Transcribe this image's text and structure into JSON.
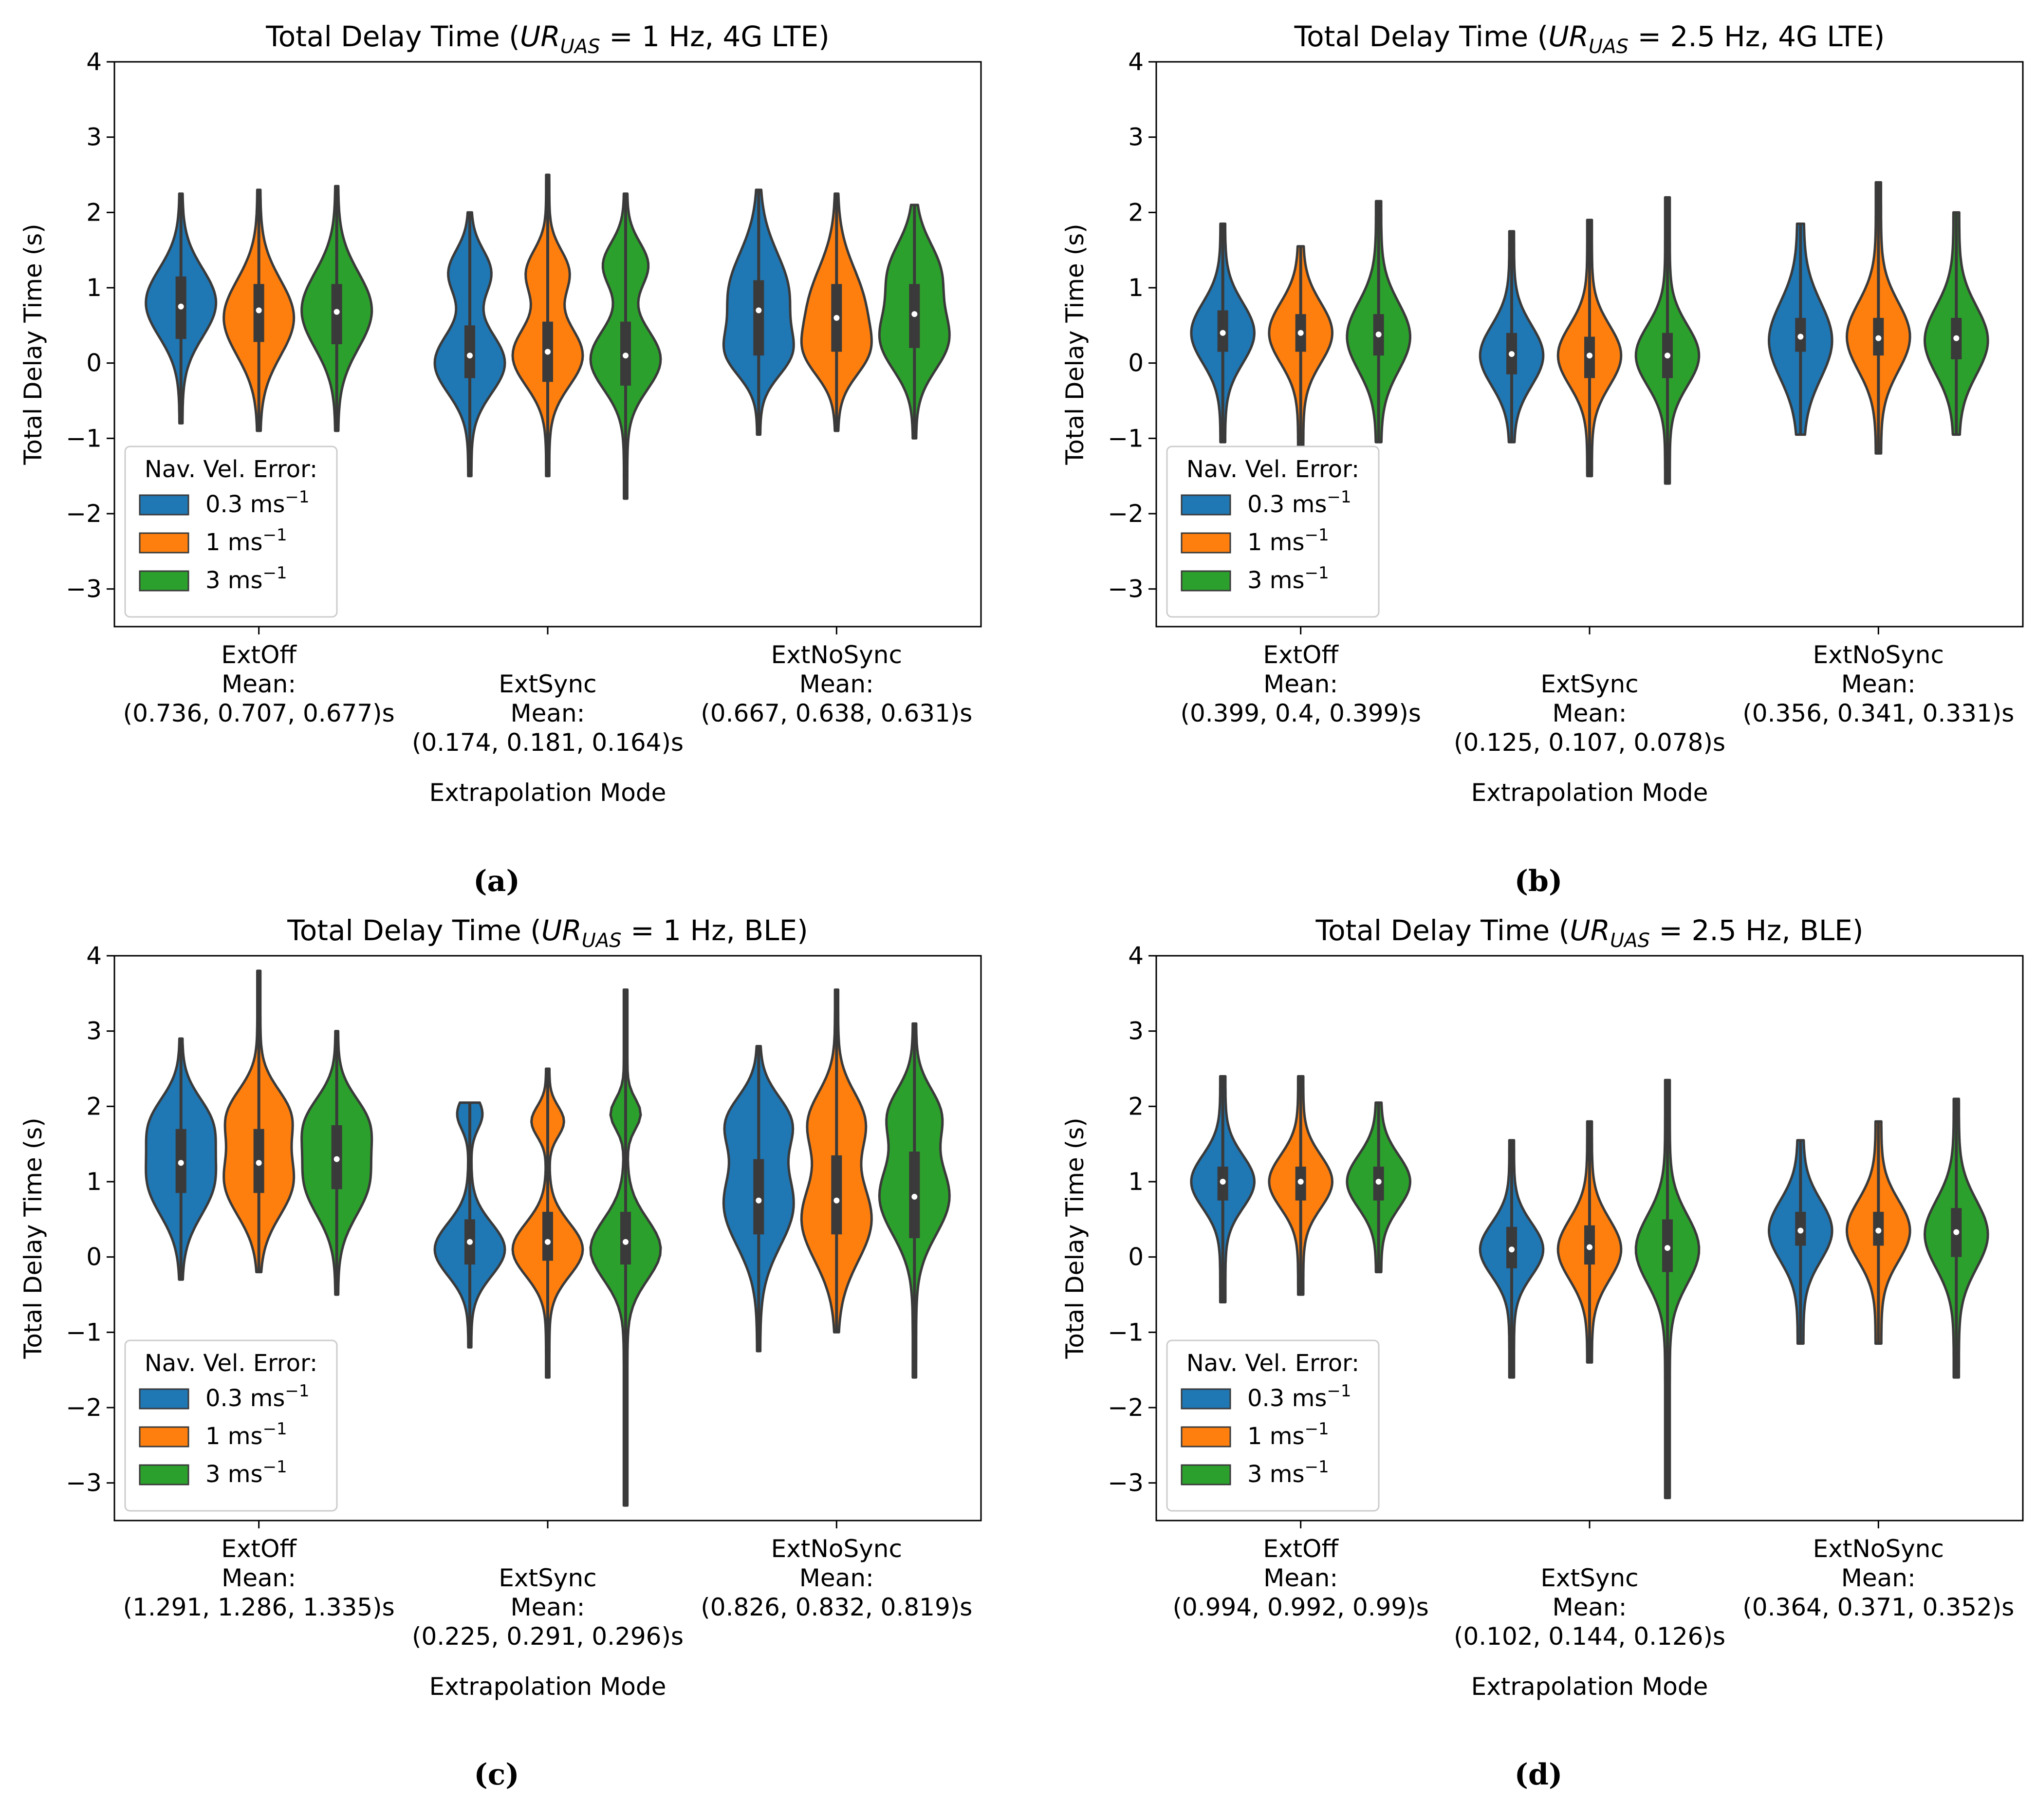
{
  "figure": {
    "legend_title": "Nav. Vel. Error:",
    "colors": {
      "s0": "#1f77b4",
      "s1": "#ff7f0e",
      "s2": "#2ca02c",
      "edge": "#3a3a3a",
      "median": "#ffffff"
    }
  },
  "chart_data": [
    {
      "type": "violin",
      "panel_label": "(a)",
      "title_pre": "Total Delay Time (",
      "title_var": "UR",
      "title_sub": "UAS",
      "title_post": " = 1 Hz, 4G LTE)",
      "xlabel": "Extrapolation Mode",
      "ylabel": "Total Delay Time (s)",
      "ylim": [
        -3.5,
        4
      ],
      "yticks": [
        -3,
        -2,
        -1,
        0,
        1,
        2,
        3,
        4
      ],
      "ytick_labels": [
        "−3",
        "−2",
        "−1",
        "0",
        "1",
        "2",
        "3",
        "4"
      ],
      "legend_position": "lower-left",
      "categories": [
        {
          "name": "ExtOff",
          "mean_label": "Mean:",
          "means": "(0.736, 0.707, 0.677)s"
        },
        {
          "name": "ExtSync",
          "mean_label": "Mean:",
          "means": "(0.174, 0.181, 0.164)s"
        },
        {
          "name": "ExtNoSync",
          "mean_label": "Mean:",
          "means": "(0.667, 0.638, 0.631)s"
        }
      ],
      "series": [
        {
          "name": "0.3 ms",
          "unit_sup": "−1",
          "color": "#1f77b4",
          "violins": [
            {
              "min": -0.8,
              "max": 2.25,
              "q1": 0.32,
              "median": 0.75,
              "q3": 1.15,
              "modes": [
                [
                  0.8,
                  0.9,
                  0.45
                ]
              ],
              "width": 1.0
            },
            {
              "min": -1.5,
              "max": 2.0,
              "q1": -0.2,
              "median": 0.1,
              "q3": 0.5,
              "modes": [
                [
                  0.0,
                  0.85,
                  0.4
                ],
                [
                  1.2,
                  0.5,
                  0.3
                ]
              ],
              "width": 1.0
            },
            {
              "min": -0.95,
              "max": 2.3,
              "q1": 0.1,
              "median": 0.7,
              "q3": 1.1,
              "modes": [
                [
                  0.9,
                  0.8,
                  0.55
                ],
                [
                  0.1,
                  0.6,
                  0.3
                ]
              ],
              "width": 1.0
            }
          ]
        },
        {
          "name": "1 ms",
          "unit_sup": "−1",
          "color": "#ff7f0e",
          "violins": [
            {
              "min": -0.9,
              "max": 2.3,
              "q1": 0.28,
              "median": 0.7,
              "q3": 1.05,
              "modes": [
                [
                  0.6,
                  0.9,
                  0.5
                ]
              ],
              "width": 1.0
            },
            {
              "min": -1.5,
              "max": 2.5,
              "q1": -0.25,
              "median": 0.15,
              "q3": 0.55,
              "modes": [
                [
                  0.1,
                  0.85,
                  0.4
                ],
                [
                  1.2,
                  0.5,
                  0.3
                ]
              ],
              "width": 1.0
            },
            {
              "min": -0.9,
              "max": 2.25,
              "q1": 0.15,
              "median": 0.6,
              "q3": 1.05,
              "modes": [
                [
                  0.7,
                  0.85,
                  0.55
                ],
                [
                  0.1,
                  0.5,
                  0.3
                ]
              ],
              "width": 1.0
            }
          ]
        },
        {
          "name": "3 ms",
          "unit_sup": "−1",
          "color": "#2ca02c",
          "violins": [
            {
              "min": -0.9,
              "max": 2.35,
              "q1": 0.25,
              "median": 0.68,
              "q3": 1.05,
              "modes": [
                [
                  0.7,
                  0.95,
                  0.5
                ]
              ],
              "width": 1.0
            },
            {
              "min": -1.8,
              "max": 2.25,
              "q1": -0.3,
              "median": 0.1,
              "q3": 0.55,
              "modes": [
                [
                  0.05,
                  0.8,
                  0.4
                ],
                [
                  1.3,
                  0.5,
                  0.3
                ]
              ],
              "width": 1.0
            },
            {
              "min": -1.0,
              "max": 2.1,
              "q1": 0.2,
              "median": 0.65,
              "q3": 1.05,
              "modes": [
                [
                  0.3,
                  0.8,
                  0.4
                ],
                [
                  1.2,
                  0.6,
                  0.4
                ]
              ],
              "width": 1.0
            }
          ]
        }
      ]
    },
    {
      "type": "violin",
      "panel_label": "(b)",
      "title_pre": "Total Delay Time (",
      "title_var": "UR",
      "title_sub": "UAS",
      "title_post": " = 2.5 Hz, 4G LTE)",
      "xlabel": "Extrapolation Mode",
      "ylabel": "Total Delay Time (s)",
      "ylim": [
        -3.5,
        4
      ],
      "yticks": [
        -3,
        -2,
        -1,
        0,
        1,
        2,
        3,
        4
      ],
      "ytick_labels": [
        "−3",
        "−2",
        "−1",
        "0",
        "1",
        "2",
        "3",
        "4"
      ],
      "legend_position": "lower-left",
      "categories": [
        {
          "name": "ExtOff",
          "mean_label": "Mean:",
          "means": "(0.399, 0.4, 0.399)s"
        },
        {
          "name": "ExtSync",
          "mean_label": "Mean:",
          "means": "(0.125, 0.107, 0.078)s"
        },
        {
          "name": "ExtNoSync",
          "mean_label": "Mean:",
          "means": "(0.356, 0.341, 0.331)s"
        }
      ],
      "series": [
        {
          "name": "0.3 ms",
          "unit_sup": "−1",
          "color": "#1f77b4",
          "violins": [
            {
              "min": -1.05,
              "max": 1.85,
              "q1": 0.15,
              "median": 0.4,
              "q3": 0.7,
              "modes": [
                [
                  0.4,
                  0.5,
                  0.4
                ]
              ],
              "width": 0.9
            },
            {
              "min": -1.05,
              "max": 1.75,
              "q1": -0.15,
              "median": 0.12,
              "q3": 0.4,
              "modes": [
                [
                  0.1,
                  0.5,
                  0.4
                ]
              ],
              "width": 0.9
            },
            {
              "min": -0.95,
              "max": 1.85,
              "q1": 0.15,
              "median": 0.35,
              "q3": 0.6,
              "modes": [
                [
                  0.3,
                  0.35,
                  0.5
                ]
              ],
              "width": 0.9
            }
          ]
        },
        {
          "name": "1 ms",
          "unit_sup": "−1",
          "color": "#ff7f0e",
          "violins": [
            {
              "min": -1.1,
              "max": 1.55,
              "q1": 0.15,
              "median": 0.4,
              "q3": 0.65,
              "modes": [
                [
                  0.4,
                  0.45,
                  0.4
                ]
              ],
              "width": 0.9
            },
            {
              "min": -1.5,
              "max": 1.9,
              "q1": -0.2,
              "median": 0.1,
              "q3": 0.35,
              "modes": [
                [
                  0.1,
                  0.5,
                  0.4
                ]
              ],
              "width": 0.9
            },
            {
              "min": -1.2,
              "max": 2.4,
              "q1": 0.1,
              "median": 0.33,
              "q3": 0.6,
              "modes": [
                [
                  0.35,
                  0.45,
                  0.45
                ]
              ],
              "width": 0.9
            }
          ]
        },
        {
          "name": "3 ms",
          "unit_sup": "−1",
          "color": "#2ca02c",
          "violins": [
            {
              "min": -1.05,
              "max": 2.15,
              "q1": 0.1,
              "median": 0.38,
              "q3": 0.65,
              "modes": [
                [
                  0.35,
                  0.45,
                  0.45
                ]
              ],
              "width": 0.9
            },
            {
              "min": -1.6,
              "max": 2.2,
              "q1": -0.2,
              "median": 0.1,
              "q3": 0.4,
              "modes": [
                [
                  0.1,
                  0.5,
                  0.4
                ]
              ],
              "width": 0.9
            },
            {
              "min": -0.95,
              "max": 2.0,
              "q1": 0.05,
              "median": 0.33,
              "q3": 0.6,
              "modes": [
                [
                  0.3,
                  0.4,
                  0.45
                ]
              ],
              "width": 0.9
            }
          ]
        }
      ]
    },
    {
      "type": "violin",
      "panel_label": "(c)",
      "title_pre": "Total Delay Time (",
      "title_var": "UR",
      "title_sub": "UAS",
      "title_post": " = 1 Hz, BLE)",
      "xlabel": "Extrapolation Mode",
      "ylabel": "Total Delay Time (s)",
      "ylim": [
        -3.5,
        4
      ],
      "yticks": [
        -3,
        -2,
        -1,
        0,
        1,
        2,
        3,
        4
      ],
      "ytick_labels": [
        "−3",
        "−2",
        "−1",
        "0",
        "1",
        "2",
        "3",
        "4"
      ],
      "legend_position": "lower-left",
      "categories": [
        {
          "name": "ExtOff",
          "mean_label": "Mean:",
          "means": "(1.291, 1.286, 1.335)s"
        },
        {
          "name": "ExtSync",
          "mean_label": "Mean:",
          "means": "(0.225, 0.291, 0.296)s"
        },
        {
          "name": "ExtNoSync",
          "mean_label": "Mean:",
          "means": "(0.826, 0.832, 0.819)s"
        }
      ],
      "series": [
        {
          "name": "0.3 ms",
          "unit_sup": "−1",
          "color": "#1f77b4",
          "violins": [
            {
              "min": -0.3,
              "max": 2.9,
              "q1": 0.85,
              "median": 1.25,
              "q3": 1.7,
              "modes": [
                [
                  1.0,
                  0.9,
                  0.45
                ],
                [
                  1.8,
                  0.7,
                  0.35
                ]
              ],
              "width": 1.0
            },
            {
              "min": -1.2,
              "max": 2.05,
              "q1": -0.1,
              "median": 0.2,
              "q3": 0.5,
              "modes": [
                [
                  0.1,
                  0.9,
                  0.35
                ],
                [
                  1.9,
                  0.3,
                  0.2
                ]
              ],
              "width": 1.0
            },
            {
              "min": -1.25,
              "max": 2.8,
              "q1": 0.3,
              "median": 0.75,
              "q3": 1.3,
              "modes": [
                [
                  0.7,
                  0.85,
                  0.55
                ],
                [
                  1.8,
                  0.7,
                  0.35
                ]
              ],
              "width": 1.0
            }
          ]
        },
        {
          "name": "1 ms",
          "unit_sup": "−1",
          "color": "#ff7f0e",
          "violins": [
            {
              "min": -0.2,
              "max": 3.8,
              "q1": 0.85,
              "median": 1.25,
              "q3": 1.7,
              "modes": [
                [
                  1.0,
                  0.85,
                  0.45
                ],
                [
                  1.9,
                  0.7,
                  0.35
                ]
              ],
              "width": 1.0
            },
            {
              "min": -1.6,
              "max": 2.5,
              "q1": -0.05,
              "median": 0.2,
              "q3": 0.6,
              "modes": [
                [
                  0.1,
                  0.8,
                  0.35
                ],
                [
                  1.8,
                  0.35,
                  0.2
                ]
              ],
              "width": 1.0
            },
            {
              "min": -1.0,
              "max": 3.55,
              "q1": 0.3,
              "median": 0.75,
              "q3": 1.35,
              "modes": [
                [
                  0.5,
                  0.85,
                  0.55
                ],
                [
                  1.8,
                  0.65,
                  0.4
                ]
              ],
              "width": 1.0
            }
          ]
        },
        {
          "name": "3 ms",
          "unit_sup": "−1",
          "color": "#2ca02c",
          "violins": [
            {
              "min": -0.5,
              "max": 3.0,
              "q1": 0.9,
              "median": 1.3,
              "q3": 1.75,
              "modes": [
                [
                  1.0,
                  0.9,
                  0.45
                ],
                [
                  1.8,
                  0.75,
                  0.35
                ]
              ],
              "width": 1.0
            },
            {
              "min": -3.3,
              "max": 3.55,
              "q1": -0.1,
              "median": 0.2,
              "q3": 0.6,
              "modes": [
                [
                  0.1,
                  0.75,
                  0.4
                ],
                [
                  1.9,
                  0.3,
                  0.2
                ]
              ],
              "width": 1.0
            },
            {
              "min": -1.6,
              "max": 3.1,
              "q1": 0.25,
              "median": 0.8,
              "q3": 1.4,
              "modes": [
                [
                  0.8,
                  0.8,
                  0.5
                ],
                [
                  1.9,
                  0.55,
                  0.35
                ]
              ],
              "width": 1.0
            }
          ]
        }
      ]
    },
    {
      "type": "violin",
      "panel_label": "(d)",
      "title_pre": "Total Delay Time (",
      "title_var": "UR",
      "title_sub": "UAS",
      "title_post": " = 2.5 Hz, BLE)",
      "xlabel": "Extrapolation Mode",
      "ylabel": "Total Delay Time (s)",
      "ylim": [
        -3.5,
        4
      ],
      "yticks": [
        -3,
        -2,
        -1,
        0,
        1,
        2,
        3,
        4
      ],
      "ytick_labels": [
        "−3",
        "−2",
        "−1",
        "0",
        "1",
        "2",
        "3",
        "4"
      ],
      "legend_position": "lower-left",
      "categories": [
        {
          "name": "ExtOff",
          "mean_label": "Mean:",
          "means": "(0.994, 0.992, 0.99)s"
        },
        {
          "name": "ExtSync",
          "mean_label": "Mean:",
          "means": "(0.102, 0.144, 0.126)s"
        },
        {
          "name": "ExtNoSync",
          "mean_label": "Mean:",
          "means": "(0.364, 0.371, 0.352)s"
        }
      ],
      "series": [
        {
          "name": "0.3 ms",
          "unit_sup": "−1",
          "color": "#1f77b4",
          "violins": [
            {
              "min": -0.6,
              "max": 2.4,
              "q1": 0.75,
              "median": 1.0,
              "q3": 1.2,
              "modes": [
                [
                  1.0,
                  0.45,
                  0.35
                ]
              ],
              "width": 0.9
            },
            {
              "min": -1.6,
              "max": 1.55,
              "q1": -0.15,
              "median": 0.1,
              "q3": 0.4,
              "modes": [
                [
                  0.1,
                  0.5,
                  0.35
                ]
              ],
              "width": 0.9
            },
            {
              "min": -1.15,
              "max": 1.55,
              "q1": 0.15,
              "median": 0.35,
              "q3": 0.6,
              "modes": [
                [
                  0.35,
                  0.4,
                  0.4
                ]
              ],
              "width": 0.9
            }
          ]
        },
        {
          "name": "1 ms",
          "unit_sup": "−1",
          "color": "#ff7f0e",
          "violins": [
            {
              "min": -0.5,
              "max": 2.4,
              "q1": 0.75,
              "median": 1.0,
              "q3": 1.2,
              "modes": [
                [
                  1.0,
                  0.45,
                  0.35
                ]
              ],
              "width": 0.9
            },
            {
              "min": -1.4,
              "max": 1.8,
              "q1": -0.1,
              "median": 0.13,
              "q3": 0.42,
              "modes": [
                [
                  0.1,
                  0.5,
                  0.4
                ]
              ],
              "width": 0.9
            },
            {
              "min": -1.15,
              "max": 1.8,
              "q1": 0.15,
              "median": 0.35,
              "q3": 0.6,
              "modes": [
                [
                  0.35,
                  0.4,
                  0.4
                ]
              ],
              "width": 0.9
            }
          ]
        },
        {
          "name": "3 ms",
          "unit_sup": "−1",
          "color": "#2ca02c",
          "violins": [
            {
              "min": -0.2,
              "max": 2.05,
              "q1": 0.75,
              "median": 1.0,
              "q3": 1.2,
              "modes": [
                [
                  1.0,
                  0.45,
                  0.35
                ]
              ],
              "width": 0.9
            },
            {
              "min": -3.2,
              "max": 2.35,
              "q1": -0.2,
              "median": 0.12,
              "q3": 0.5,
              "modes": [
                [
                  0.1,
                  0.5,
                  0.45
                ]
              ],
              "width": 0.9
            },
            {
              "min": -1.6,
              "max": 2.1,
              "q1": 0.0,
              "median": 0.33,
              "q3": 0.65,
              "modes": [
                [
                  0.3,
                  0.45,
                  0.45
                ]
              ],
              "width": 0.9
            }
          ]
        }
      ]
    }
  ]
}
